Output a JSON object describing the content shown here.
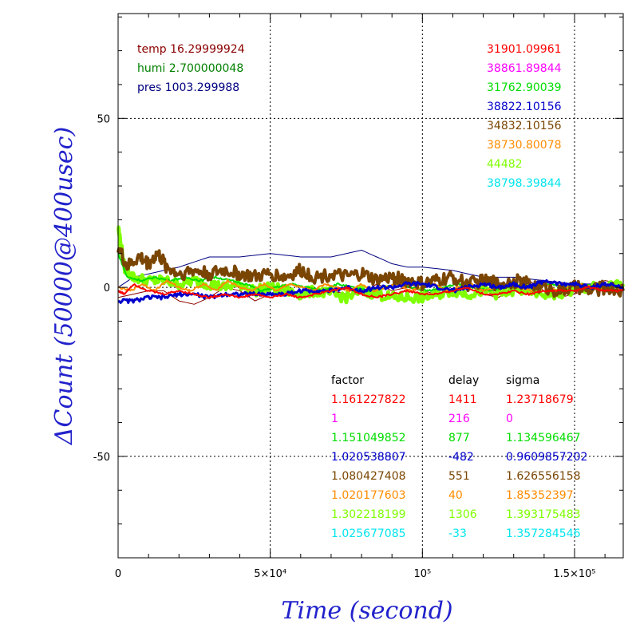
{
  "chart_data": {
    "type": "line",
    "xlabel": "Time (second)",
    "ylabel": "ΔCount (50000@400usec)",
    "xlim": [
      0,
      166000
    ],
    "ylim": [
      -80,
      81
    ],
    "grid": true,
    "x_ticks": [
      {
        "value": 0,
        "label": "0"
      },
      {
        "value": 50000,
        "label": "5×10⁴"
      },
      {
        "value": 100000,
        "label": "10⁵"
      },
      {
        "value": 150000,
        "label": "1.5×10⁵"
      }
    ],
    "y_ticks": [
      {
        "value": 50,
        "label": "50"
      },
      {
        "value": 0,
        "label": "0"
      },
      {
        "value": -50,
        "label": "-50"
      }
    ],
    "env": [
      {
        "label": "temp 16.29999924",
        "color": "#8b0000"
      },
      {
        "label": "humi 2.700000048",
        "color": "#008000"
      },
      {
        "label": "pres 1003.299988",
        "color": "#000080"
      }
    ],
    "counts": [
      {
        "label": "31901.09961",
        "color": "#ff0000"
      },
      {
        "label": "38861.89844",
        "color": "#ff00ff"
      },
      {
        "label": "31762.90039",
        "color": "#00dd00"
      },
      {
        "label": "38822.10156",
        "color": "#0000cc"
      },
      {
        "label": "34832.10156",
        "color": "#7a4500"
      },
      {
        "label": "38730.80078",
        "color": "#ff8c00"
      },
      {
        "label": "44482",
        "color": "#7fff00"
      },
      {
        "label": "38798.39844",
        "color": "#00e5ee"
      }
    ],
    "table": {
      "headers": [
        "factor",
        "delay",
        "sigma"
      ],
      "rows": [
        {
          "factor": "1.161227822",
          "delay": "1411",
          "sigma": "1.23718679",
          "color": "#ff0000"
        },
        {
          "factor": "1",
          "delay": "216",
          "sigma": "0",
          "color": "#ff00ff"
        },
        {
          "factor": "1.151049852",
          "delay": "877",
          "sigma": "1.134596467",
          "color": "#00dd00"
        },
        {
          "factor": "1.020538807",
          "delay": "-482",
          "sigma": "0.9609857202",
          "color": "#0000cc"
        },
        {
          "factor": "1.080427408",
          "delay": "551",
          "sigma": "1.626556158",
          "color": "#7a4500"
        },
        {
          "factor": "1.020177603",
          "delay": "40",
          "sigma": "1.85352397",
          "color": "#ff8c00"
        },
        {
          "factor": "1.302218199",
          "delay": "1306",
          "sigma": "1.393175483",
          "color": "#7fff00"
        },
        {
          "factor": "1.025677085",
          "delay": "-33",
          "sigma": "1.357284546",
          "color": "#00e5ee"
        }
      ]
    },
    "series": [
      {
        "color": "#000080",
        "width": 1,
        "jitter": 0,
        "points": [
          [
            0,
            0
          ],
          [
            5000,
            3
          ],
          [
            10000,
            4
          ],
          [
            20000,
            6
          ],
          [
            30000,
            9
          ],
          [
            40000,
            9
          ],
          [
            50000,
            10
          ],
          [
            60000,
            9
          ],
          [
            70000,
            9
          ],
          [
            80000,
            11
          ],
          [
            85000,
            9
          ],
          [
            90000,
            7
          ],
          [
            95000,
            6
          ],
          [
            100000,
            6
          ],
          [
            110000,
            5
          ],
          [
            120000,
            3
          ],
          [
            130000,
            3
          ],
          [
            140000,
            2
          ],
          [
            150000,
            1
          ],
          [
            160000,
            1
          ],
          [
            166000,
            0
          ]
        ]
      },
      {
        "color": "#8b0000",
        "width": 1,
        "jitter": 0,
        "points": [
          [
            0,
            -3
          ],
          [
            10000,
            -1
          ],
          [
            15000,
            -1
          ],
          [
            20000,
            -4
          ],
          [
            25000,
            -5
          ],
          [
            30000,
            -3
          ],
          [
            35000,
            0
          ],
          [
            40000,
            -1
          ],
          [
            45000,
            -4
          ],
          [
            50000,
            -2
          ],
          [
            55000,
            0
          ],
          [
            60000,
            -3
          ],
          [
            65000,
            -2
          ],
          [
            70000,
            -1
          ],
          [
            75000,
            -2
          ],
          [
            80000,
            -2
          ],
          [
            85000,
            1
          ],
          [
            90000,
            -1
          ],
          [
            95000,
            0
          ],
          [
            100000,
            -1
          ],
          [
            105000,
            -2
          ],
          [
            110000,
            -1
          ],
          [
            115000,
            1
          ],
          [
            120000,
            -2
          ],
          [
            125000,
            -3
          ],
          [
            130000,
            0
          ],
          [
            135000,
            2
          ],
          [
            140000,
            -1
          ],
          [
            145000,
            -3
          ],
          [
            150000,
            -2
          ],
          [
            155000,
            0
          ],
          [
            160000,
            2
          ],
          [
            166000,
            1
          ]
        ]
      },
      {
        "color": "#7fff00",
        "width": 5,
        "jitter": 1.5,
        "points": [
          [
            0,
            18
          ],
          [
            2000,
            6
          ],
          [
            5000,
            3
          ],
          [
            10000,
            2
          ],
          [
            15000,
            2
          ],
          [
            20000,
            1
          ],
          [
            25000,
            2
          ],
          [
            30000,
            1
          ],
          [
            35000,
            0
          ],
          [
            40000,
            1
          ],
          [
            45000,
            -1
          ],
          [
            50000,
            0
          ],
          [
            55000,
            -1
          ],
          [
            60000,
            -2
          ],
          [
            65000,
            -1
          ],
          [
            70000,
            -2
          ],
          [
            75000,
            -3
          ],
          [
            80000,
            -1
          ],
          [
            85000,
            -2
          ],
          [
            90000,
            -3
          ],
          [
            95000,
            -3
          ],
          [
            100000,
            -3
          ],
          [
            105000,
            -2
          ],
          [
            110000,
            -1
          ],
          [
            115000,
            -2
          ],
          [
            120000,
            -1
          ],
          [
            125000,
            -2
          ],
          [
            130000,
            -1
          ],
          [
            135000,
            -1
          ],
          [
            140000,
            -2
          ],
          [
            145000,
            -2
          ],
          [
            150000,
            -1
          ],
          [
            155000,
            0
          ],
          [
            160000,
            0
          ],
          [
            166000,
            1
          ]
        ]
      },
      {
        "color": "#00dd00",
        "width": 2,
        "jitter": 0.3,
        "points": [
          [
            0,
            10
          ],
          [
            3000,
            3
          ],
          [
            8000,
            2
          ],
          [
            12000,
            3
          ],
          [
            17000,
            2
          ],
          [
            22000,
            3
          ],
          [
            27000,
            2
          ],
          [
            32000,
            3
          ],
          [
            37000,
            2
          ],
          [
            42000,
            1
          ],
          [
            47000,
            -1
          ],
          [
            52000,
            0
          ],
          [
            57000,
            1
          ],
          [
            62000,
            0
          ],
          [
            67000,
            -1
          ],
          [
            72000,
            1
          ],
          [
            77000,
            0
          ],
          [
            82000,
            -1
          ],
          [
            87000,
            0
          ],
          [
            92000,
            1
          ],
          [
            97000,
            0
          ],
          [
            102000,
            -1
          ],
          [
            107000,
            0
          ],
          [
            112000,
            1
          ],
          [
            117000,
            0
          ],
          [
            122000,
            -1
          ],
          [
            127000,
            0
          ],
          [
            132000,
            1
          ],
          [
            137000,
            0
          ],
          [
            142000,
            1
          ],
          [
            147000,
            0
          ],
          [
            152000,
            1
          ],
          [
            157000,
            0
          ],
          [
            162000,
            0
          ],
          [
            166000,
            0
          ]
        ]
      },
      {
        "color": "#ff8c00",
        "width": 2,
        "jitter": 0.3,
        "points": [
          [
            0,
            0
          ],
          [
            4000,
            -1
          ],
          [
            8000,
            1
          ],
          [
            12000,
            -1
          ],
          [
            16000,
            2
          ],
          [
            20000,
            0
          ],
          [
            24000,
            -1
          ],
          [
            28000,
            1
          ],
          [
            32000,
            -1
          ],
          [
            36000,
            2
          ],
          [
            40000,
            0
          ],
          [
            44000,
            -1
          ],
          [
            48000,
            1
          ],
          [
            52000,
            -1
          ],
          [
            56000,
            1
          ],
          [
            60000,
            0
          ],
          [
            64000,
            -1
          ],
          [
            68000,
            1
          ],
          [
            72000,
            0
          ],
          [
            76000,
            -1
          ],
          [
            80000,
            1
          ],
          [
            84000,
            -1
          ],
          [
            88000,
            0
          ],
          [
            92000,
            1
          ],
          [
            96000,
            -1
          ],
          [
            100000,
            0
          ],
          [
            104000,
            1
          ],
          [
            108000,
            -1
          ],
          [
            112000,
            0
          ],
          [
            116000,
            1
          ],
          [
            120000,
            -1
          ],
          [
            124000,
            0
          ],
          [
            128000,
            1
          ],
          [
            132000,
            0
          ],
          [
            136000,
            -1
          ],
          [
            140000,
            1
          ],
          [
            144000,
            -1
          ],
          [
            148000,
            0
          ],
          [
            152000,
            1
          ],
          [
            156000,
            0
          ],
          [
            160000,
            -1
          ],
          [
            166000,
            0
          ]
        ]
      },
      {
        "color": "#7a4500",
        "width": 4,
        "jitter": 2,
        "points": [
          [
            0,
            12
          ],
          [
            3000,
            6
          ],
          [
            7000,
            9
          ],
          [
            10000,
            7
          ],
          [
            13000,
            10
          ],
          [
            16000,
            6
          ],
          [
            20000,
            4
          ],
          [
            25000,
            5
          ],
          [
            30000,
            4
          ],
          [
            35000,
            5
          ],
          [
            40000,
            4
          ],
          [
            45000,
            3
          ],
          [
            50000,
            4
          ],
          [
            55000,
            3
          ],
          [
            60000,
            5
          ],
          [
            65000,
            3
          ],
          [
            70000,
            4
          ],
          [
            75000,
            3
          ],
          [
            80000,
            4
          ],
          [
            85000,
            2
          ],
          [
            90000,
            3
          ],
          [
            95000,
            2
          ],
          [
            100000,
            1
          ],
          [
            105000,
            2
          ],
          [
            110000,
            3
          ],
          [
            115000,
            1
          ],
          [
            120000,
            2
          ],
          [
            125000,
            1
          ],
          [
            130000,
            2
          ],
          [
            135000,
            1
          ],
          [
            140000,
            0
          ],
          [
            145000,
            -1
          ],
          [
            150000,
            0
          ],
          [
            155000,
            -1
          ],
          [
            160000,
            0
          ],
          [
            166000,
            -1
          ]
        ]
      },
      {
        "color": "#0000cc",
        "width": 3,
        "jitter": 0.6,
        "points": [
          [
            0,
            -4
          ],
          [
            5000,
            -4
          ],
          [
            10000,
            -3
          ],
          [
            15000,
            -3
          ],
          [
            20000,
            -2
          ],
          [
            25000,
            -2
          ],
          [
            30000,
            -3
          ],
          [
            35000,
            -2
          ],
          [
            40000,
            -2
          ],
          [
            45000,
            -2
          ],
          [
            50000,
            -2
          ],
          [
            55000,
            -2
          ],
          [
            60000,
            -1
          ],
          [
            65000,
            -1
          ],
          [
            70000,
            -1
          ],
          [
            75000,
            0
          ],
          [
            80000,
            -1
          ],
          [
            85000,
            0
          ],
          [
            90000,
            0
          ],
          [
            95000,
            1
          ],
          [
            100000,
            1
          ],
          [
            105000,
            0
          ],
          [
            110000,
            -1
          ],
          [
            115000,
            0
          ],
          [
            120000,
            1
          ],
          [
            125000,
            0
          ],
          [
            130000,
            1
          ],
          [
            135000,
            0
          ],
          [
            140000,
            2
          ],
          [
            145000,
            1
          ],
          [
            150000,
            1
          ],
          [
            155000,
            0
          ],
          [
            160000,
            1
          ],
          [
            166000,
            0
          ]
        ]
      },
      {
        "color": "#ff0000",
        "width": 2,
        "jitter": 0.3,
        "points": [
          [
            0,
            -1
          ],
          [
            2000,
            -2
          ],
          [
            5000,
            1
          ],
          [
            10000,
            -1
          ],
          [
            15000,
            -2
          ],
          [
            20000,
            -1
          ],
          [
            25000,
            -2
          ],
          [
            30000,
            -3
          ],
          [
            35000,
            -2
          ],
          [
            40000,
            -3
          ],
          [
            45000,
            -2
          ],
          [
            50000,
            -3
          ],
          [
            55000,
            -2
          ],
          [
            60000,
            -3
          ],
          [
            65000,
            -2
          ],
          [
            70000,
            -1
          ],
          [
            75000,
            0
          ],
          [
            80000,
            -2
          ],
          [
            85000,
            -3
          ],
          [
            90000,
            -2
          ],
          [
            95000,
            -1
          ],
          [
            100000,
            -2
          ],
          [
            105000,
            -2
          ],
          [
            110000,
            -1
          ],
          [
            115000,
            0
          ],
          [
            120000,
            -2
          ],
          [
            125000,
            -2
          ],
          [
            130000,
            -1
          ],
          [
            135000,
            -2
          ],
          [
            140000,
            -1
          ],
          [
            145000,
            -1
          ],
          [
            150000,
            -1
          ],
          [
            155000,
            0
          ],
          [
            160000,
            -1
          ],
          [
            166000,
            -1
          ]
        ]
      }
    ]
  }
}
